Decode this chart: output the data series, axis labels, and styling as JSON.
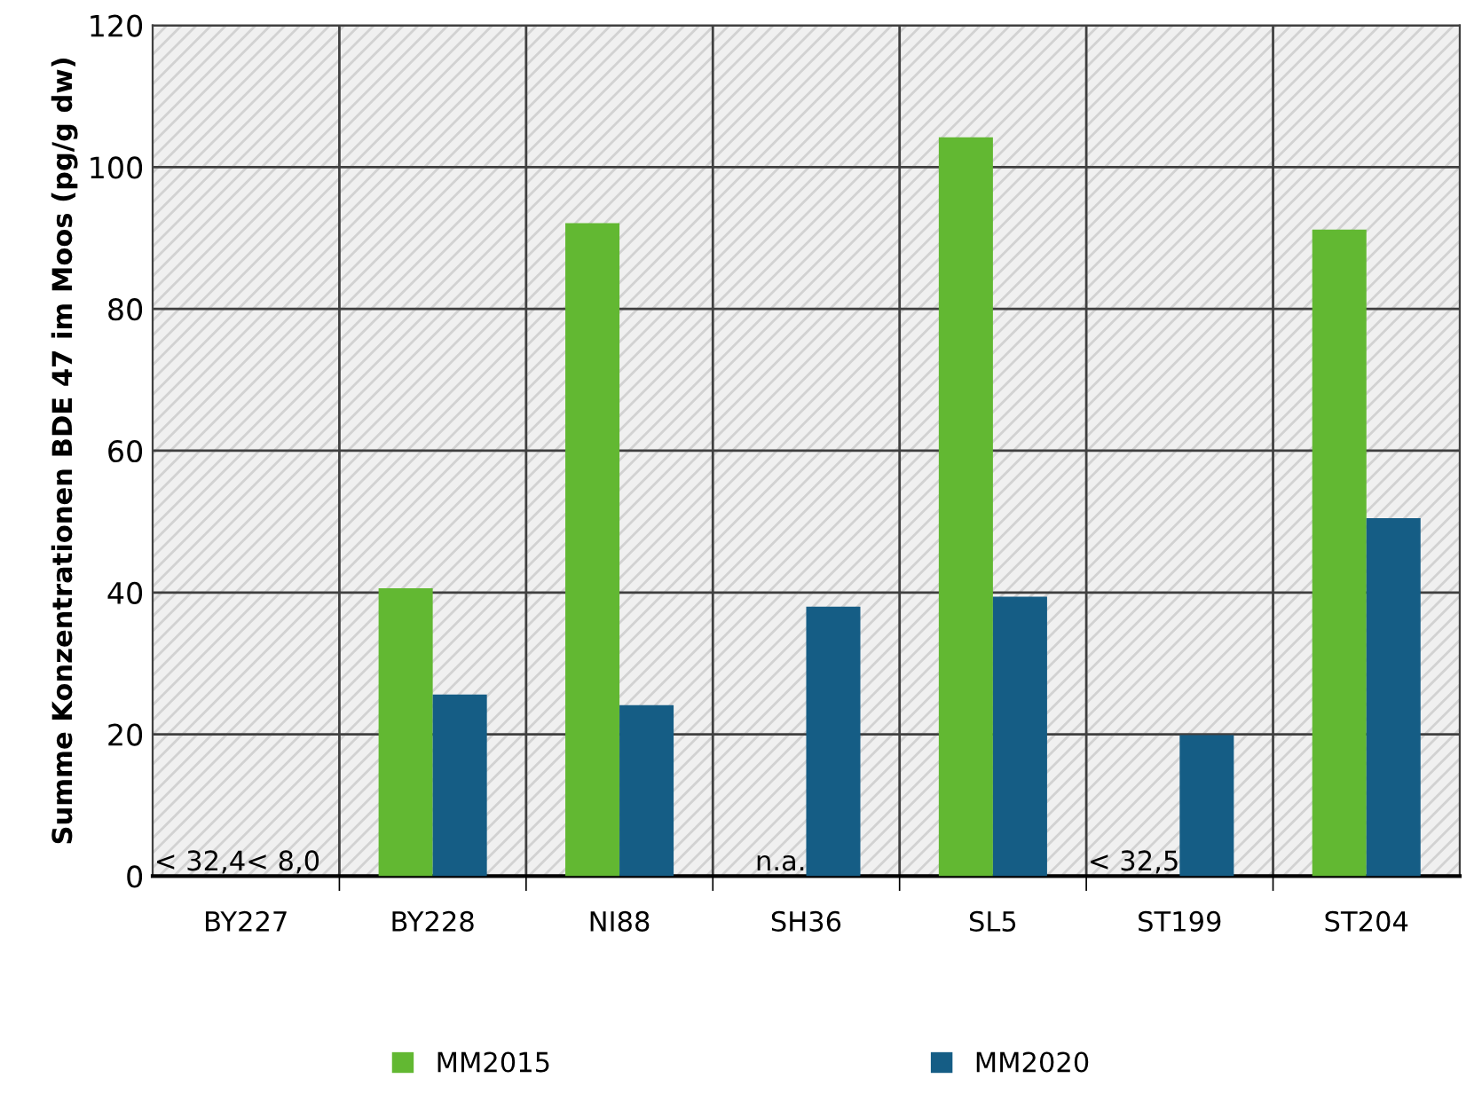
{
  "chart_data": {
    "type": "bar",
    "ylabel": "Summe Konzentrationen BDE 47 im Moos (pg/g dw)",
    "categories": [
      "BY227",
      "BY228",
      "NI88",
      "SH36",
      "SL5",
      "ST199",
      "ST204"
    ],
    "series": [
      {
        "name": "MM2015",
        "color": "#62b832",
        "values": [
          null,
          40.6,
          92.1,
          null,
          104.2,
          null,
          91.2
        ],
        "value_labels": [
          "< 32,4",
          null,
          null,
          "n.a.",
          null,
          "< 32,5",
          null
        ]
      },
      {
        "name": "MM2020",
        "color": "#155d85",
        "values": [
          null,
          25.6,
          24.1,
          38.0,
          39.4,
          19.9,
          50.5
        ],
        "value_labels": [
          "< 8,0",
          null,
          null,
          null,
          null,
          null,
          null
        ]
      }
    ],
    "ylim": [
      0,
      120
    ],
    "yticks": [
      0,
      20,
      40,
      60,
      80,
      100,
      120
    ],
    "grid": true,
    "legend": "bottom"
  }
}
